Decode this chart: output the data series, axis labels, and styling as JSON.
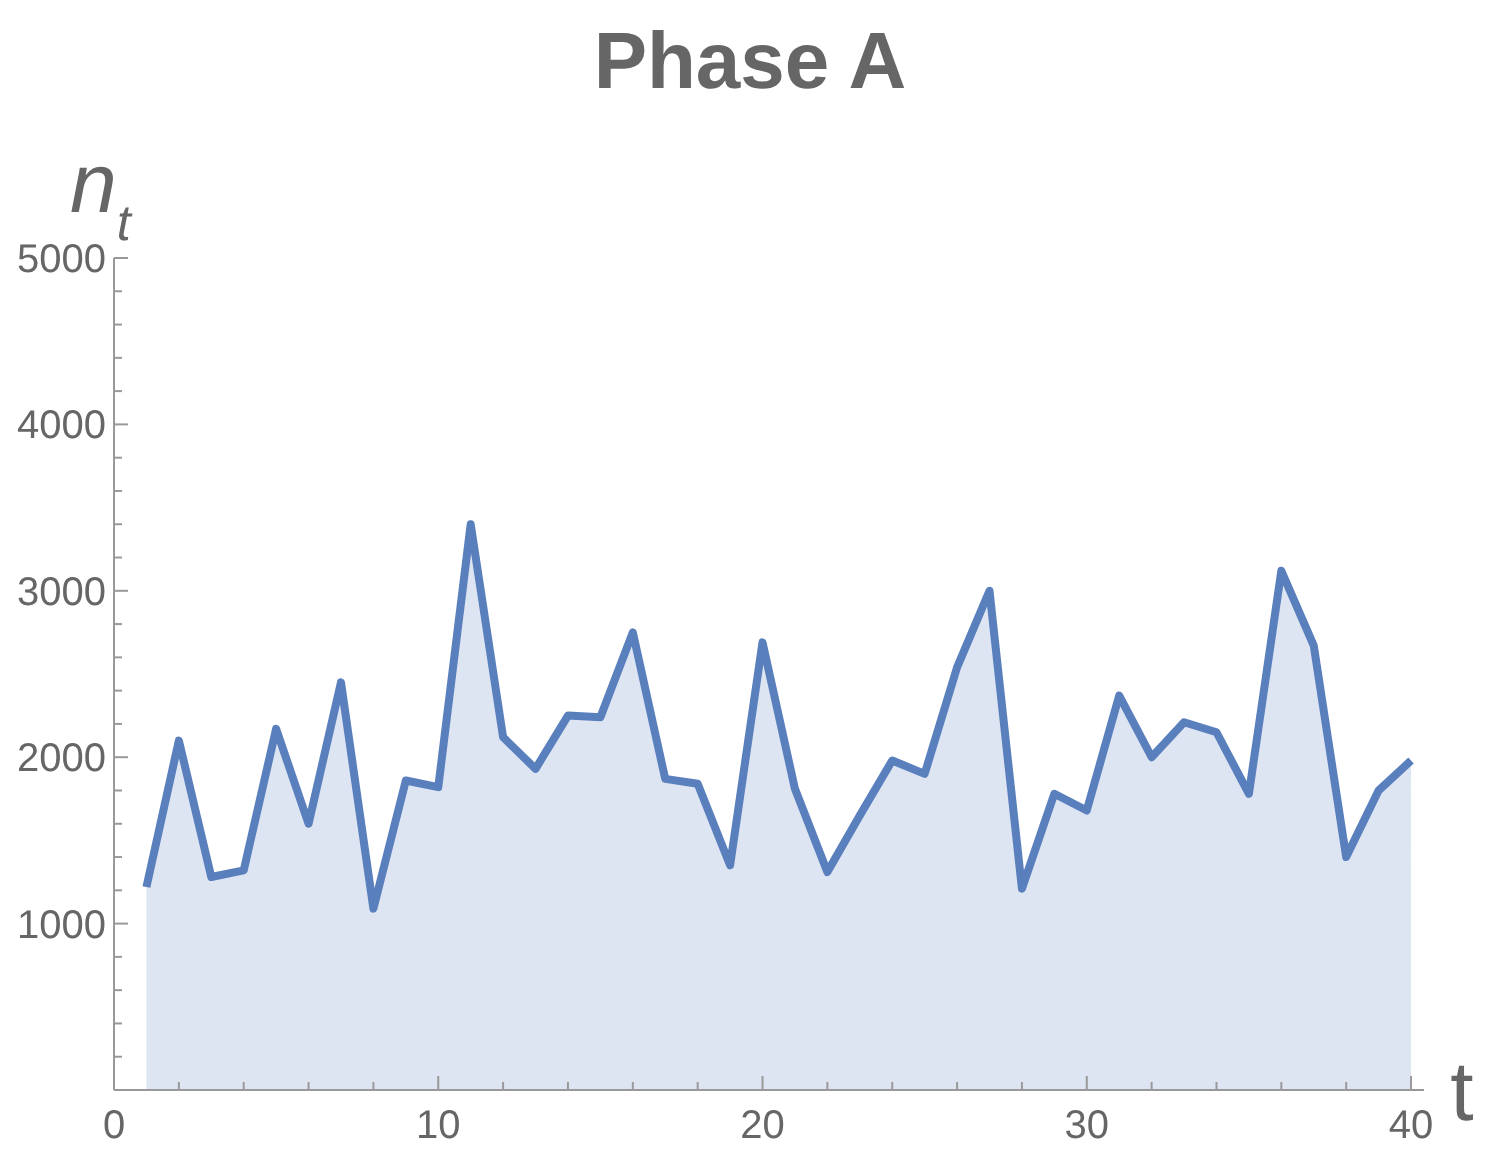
{
  "chart_data": {
    "type": "area",
    "title": "Phase A",
    "xlabel": "t",
    "ylabel": "n$_{t}$",
    "x": [
      1,
      2,
      3,
      4,
      5,
      6,
      7,
      8,
      9,
      10,
      11,
      12,
      13,
      14,
      15,
      16,
      17,
      18,
      19,
      20,
      21,
      22,
      23,
      24,
      25,
      26,
      27,
      28,
      29,
      30,
      31,
      32,
      33,
      34,
      35,
      36,
      37,
      38,
      39,
      40
    ],
    "series": [
      {
        "color": "#5a7fbd",
        "values": [
          1220,
          2100,
          1280,
          1320,
          2170,
          1600,
          2450,
          1090,
          1860,
          1820,
          3400,
          2120,
          1930,
          2250,
          2240,
          2750,
          1870,
          1840,
          1350,
          2690,
          1810,
          1310,
          1650,
          1980,
          1900,
          2540,
          3000,
          1210,
          1780,
          1680,
          2370,
          2000,
          2210,
          2150,
          1780,
          3120,
          2670,
          1400,
          1800,
          1980
        ]
      }
    ],
    "xlim": [
      0,
      40.4
    ],
    "ylim": [
      0,
      5000
    ],
    "xticks": [
      0,
      {
        "value": 2,
        "label": null
      },
      {
        "value": 4,
        "label": null
      },
      {
        "value": 6,
        "label": null
      },
      {
        "value": 8,
        "label": null
      },
      10,
      {
        "value": 12,
        "label": null
      },
      {
        "value": 14,
        "label": null
      },
      {
        "value": 16,
        "label": null
      },
      {
        "value": 18,
        "label": null
      },
      20,
      {
        "value": 22,
        "label": null
      },
      {
        "value": 24,
        "label": null
      },
      {
        "value": 26,
        "label": null
      },
      {
        "value": 28,
        "label": null
      },
      30,
      {
        "value": 32,
        "label": null
      },
      {
        "value": 34,
        "label": null
      },
      {
        "value": 36,
        "label": null
      },
      {
        "value": 38,
        "label": null
      },
      40
    ],
    "yticks": [
      {
        "value": 200,
        "label": null
      },
      {
        "value": 400,
        "label": null
      },
      {
        "value": 600,
        "label": null
      },
      {
        "value": 800,
        "label": null
      },
      1000,
      {
        "value": 1200,
        "label": null
      },
      {
        "value": 1400,
        "label": null
      },
      {
        "value": 1600,
        "label": null
      },
      {
        "value": 1800,
        "label": null
      },
      2000,
      {
        "value": 2200,
        "label": null
      },
      {
        "value": 2400,
        "label": null
      },
      {
        "value": 2600,
        "label": null
      },
      {
        "value": 2800,
        "label": null
      },
      3000,
      {
        "value": 3200,
        "label": null
      },
      {
        "value": 3400,
        "label": null
      },
      {
        "value": 3600,
        "label": null
      },
      {
        "value": 3800,
        "label": null
      },
      4000,
      {
        "value": 4200,
        "label": null
      },
      {
        "value": 4400,
        "label": null
      },
      {
        "value": 4600,
        "label": null
      },
      {
        "value": 4800,
        "label": null
      },
      5000
    ],
    "grid": false
  }
}
